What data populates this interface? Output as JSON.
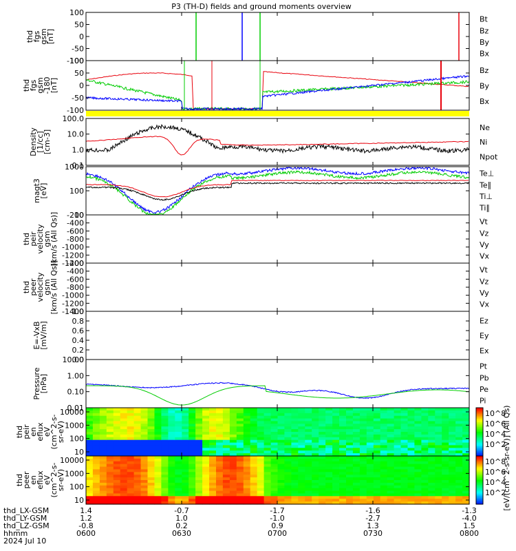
{
  "title": "P3 (TH-D) fields and ground moments overview",
  "colors": {
    "black": "#000000",
    "red": "#e8000b",
    "green": "#00cc00",
    "blue": "#0000ff",
    "yellow": "#ffff00"
  },
  "chart_data": [
    {
      "id": "fgs_gsm",
      "type": "line",
      "ylabel_lines": [
        "thd",
        "fgs",
        "gsm",
        "[nT]"
      ],
      "yticks": [
        "100",
        "50",
        "0",
        "-50",
        "-100"
      ],
      "legend": [
        {
          "name": "Bt",
          "color": "black"
        },
        {
          "name": "Bz",
          "color": "red"
        },
        {
          "name": "By",
          "color": "green"
        },
        {
          "name": "Bx",
          "color": "blue"
        }
      ]
    },
    {
      "id": "fgs_gsm_zoom",
      "type": "line",
      "ylabel_lines": [
        "thd",
        "fgs",
        "gsm",
        "-180",
        "[nT]"
      ],
      "yticks": [
        "100",
        "50",
        "0",
        "-50",
        "-100"
      ],
      "legend": [
        {
          "name": "Bz",
          "color": "red"
        },
        {
          "name": "By",
          "color": "green"
        },
        {
          "name": "Bx",
          "color": "blue"
        }
      ]
    },
    {
      "id": "density",
      "type": "line",
      "ylabel_lines": [
        "Density",
        "[1/cc]",
        "[cm-3]"
      ],
      "yticks": [
        "100.0",
        "10.0",
        "1.0",
        "0.1"
      ],
      "log": true,
      "legend": [
        {
          "name": "Ne",
          "color": "red"
        },
        {
          "name": "Ni",
          "color": "black"
        },
        {
          "name": "Npot",
          "color": "blue"
        }
      ]
    },
    {
      "id": "temperature",
      "type": "line",
      "ylabel_lines": [
        "magt3",
        "[eV]"
      ],
      "yticks": [
        "1000",
        "100",
        "10"
      ],
      "log": true,
      "legend": [
        {
          "name": "Te⊥",
          "color": "red"
        },
        {
          "name": "Te∥",
          "color": "black"
        },
        {
          "name": "Ti⊥",
          "color": "blue"
        },
        {
          "name": "Ti∥",
          "color": "green"
        }
      ]
    },
    {
      "id": "peir_velocity",
      "type": "line",
      "ylabel_lines": [
        "thd",
        "peir",
        "velocity",
        "gsm",
        "[km/s (All Qs)]"
      ],
      "yticks": [
        "-200",
        "-400",
        "-600",
        "-800",
        "-1000",
        "-1200",
        "-1400"
      ],
      "legend": [
        {
          "name": "Vt",
          "color": "black"
        },
        {
          "name": "Vz",
          "color": "red"
        },
        {
          "name": "Vy",
          "color": "green"
        },
        {
          "name": "Vx",
          "color": "blue"
        }
      ]
    },
    {
      "id": "peer_velocity",
      "type": "line",
      "ylabel_lines": [
        "thd",
        "peer",
        "velocity",
        "gsm",
        "[km/s (All Qs)]"
      ],
      "yticks": [
        "-200",
        "-400",
        "-600",
        "-800",
        "-1000",
        "-1200",
        "-1400"
      ],
      "legend": [
        {
          "name": "Vt",
          "color": "black"
        },
        {
          "name": "Vz",
          "color": "red"
        },
        {
          "name": "Vy",
          "color": "green"
        },
        {
          "name": "Vx",
          "color": "blue"
        }
      ]
    },
    {
      "id": "efield",
      "type": "line",
      "ylabel_lines": [
        "E=-VxB",
        "[mV/m]"
      ],
      "yticks": [
        "1.0",
        "0.8",
        "0.6",
        "0.4",
        "0.2",
        "0.0"
      ],
      "legend": [
        {
          "name": "Ez",
          "color": "red"
        },
        {
          "name": "Ey",
          "color": "green"
        },
        {
          "name": "Ex",
          "color": "blue"
        }
      ]
    },
    {
      "id": "pressure",
      "type": "line",
      "ylabel_lines": [
        "Pressure",
        "[nPa]"
      ],
      "yticks": [
        "10.00",
        "1.00",
        "0.10",
        "0.01"
      ],
      "log": true,
      "legend": [
        {
          "name": "Pt",
          "color": "black"
        },
        {
          "name": "Pb",
          "color": "red"
        },
        {
          "name": "Pe",
          "color": "green"
        },
        {
          "name": "Pi",
          "color": "blue"
        }
      ]
    },
    {
      "id": "peir_spectrogram",
      "type": "heatmap",
      "ylabel_lines": [
        "thd",
        "peir",
        "en",
        "eflux",
        "eV",
        "(cm^2-s-",
        "sr-eV)"
      ],
      "yticks": [
        "10000",
        "1000",
        "100",
        "10"
      ]
    },
    {
      "id": "peer_spectrogram",
      "type": "heatmap",
      "ylabel_lines": [
        "thd",
        "peer",
        "en",
        "eflux",
        "eV",
        "(cm^2-s-",
        "sr-eV)"
      ],
      "yticks": [
        "10000",
        "1000",
        "100",
        "10"
      ]
    }
  ],
  "colorbar": {
    "label": "[eV/(cm^2-s-sr-eV)] (All Qs)",
    "ticks_top": [
      "10^8",
      "10^6",
      "10^4",
      "10^2"
    ],
    "ticks_bottom": [
      "10^8",
      "10^6",
      "10^4",
      "10^2"
    ]
  },
  "xaxis": {
    "rows": [
      {
        "label": "thd_LX-GSM",
        "values": [
          "1.4",
          "-0.7",
          "-1.7",
          "-1.6",
          "-1.3"
        ]
      },
      {
        "label": "thd_LY-GSM",
        "values": [
          "1.2",
          "1.0",
          "-1.0",
          "-2.7",
          "-4.0"
        ]
      },
      {
        "label": "thd_LZ-GSM",
        "values": [
          "-0.8",
          "0.2",
          "0.9",
          "1.3",
          "1.5"
        ]
      },
      {
        "label": "hhmm",
        "values": [
          "0600",
          "0630",
          "0700",
          "0730",
          "0800"
        ]
      }
    ],
    "date": "2024 Jul 10"
  }
}
